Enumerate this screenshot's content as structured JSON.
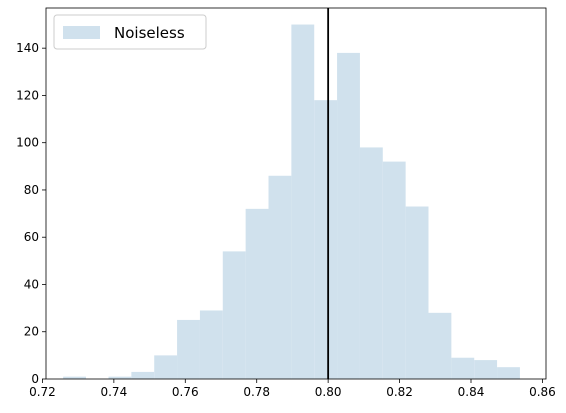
{
  "chart_data": {
    "type": "bar",
    "subtype": "histogram",
    "title": "",
    "xlabel": "",
    "ylabel": "",
    "xlim": [
      0.721,
      0.861
    ],
    "ylim": [
      0,
      157
    ],
    "xticks": [
      0.72,
      0.74,
      0.76,
      0.78,
      0.8,
      0.82,
      0.84,
      0.86
    ],
    "xtick_labels": [
      "0.72",
      "0.74",
      "0.76",
      "0.78",
      "0.80",
      "0.82",
      "0.84",
      "0.86"
    ],
    "yticks": [
      0,
      20,
      40,
      60,
      80,
      100,
      120,
      140
    ],
    "ytick_labels": [
      "0",
      "20",
      "40",
      "60",
      "80",
      "100",
      "120",
      "140"
    ],
    "grid": false,
    "legend_position": "top-left",
    "series": [
      {
        "name": "Noiseless",
        "color": "#d0e1ed",
        "bins": [
          {
            "x0": 0.7258,
            "x1": 0.7322,
            "count": 1
          },
          {
            "x0": 0.7322,
            "x1": 0.7385,
            "count": 0
          },
          {
            "x0": 0.7385,
            "x1": 0.7449,
            "count": 1
          },
          {
            "x0": 0.7449,
            "x1": 0.7513,
            "count": 3
          },
          {
            "x0": 0.7513,
            "x1": 0.7577,
            "count": 10
          },
          {
            "x0": 0.7577,
            "x1": 0.7641,
            "count": 25
          },
          {
            "x0": 0.7641,
            "x1": 0.7705,
            "count": 29
          },
          {
            "x0": 0.7705,
            "x1": 0.7769,
            "count": 54
          },
          {
            "x0": 0.7769,
            "x1": 0.7833,
            "count": 72
          },
          {
            "x0": 0.7833,
            "x1": 0.7897,
            "count": 86
          },
          {
            "x0": 0.7897,
            "x1": 0.7961,
            "count": 150
          },
          {
            "x0": 0.7961,
            "x1": 0.8025,
            "count": 118
          },
          {
            "x0": 0.8025,
            "x1": 0.8089,
            "count": 138
          },
          {
            "x0": 0.8089,
            "x1": 0.8153,
            "count": 98
          },
          {
            "x0": 0.8153,
            "x1": 0.8217,
            "count": 92
          },
          {
            "x0": 0.8217,
            "x1": 0.8281,
            "count": 73
          },
          {
            "x0": 0.8281,
            "x1": 0.8345,
            "count": 28
          },
          {
            "x0": 0.8345,
            "x1": 0.8409,
            "count": 9
          },
          {
            "x0": 0.8409,
            "x1": 0.8473,
            "count": 8
          },
          {
            "x0": 0.8473,
            "x1": 0.8537,
            "count": 5
          }
        ]
      }
    ],
    "reference_line": {
      "x": 0.8,
      "color": "#000000"
    }
  }
}
